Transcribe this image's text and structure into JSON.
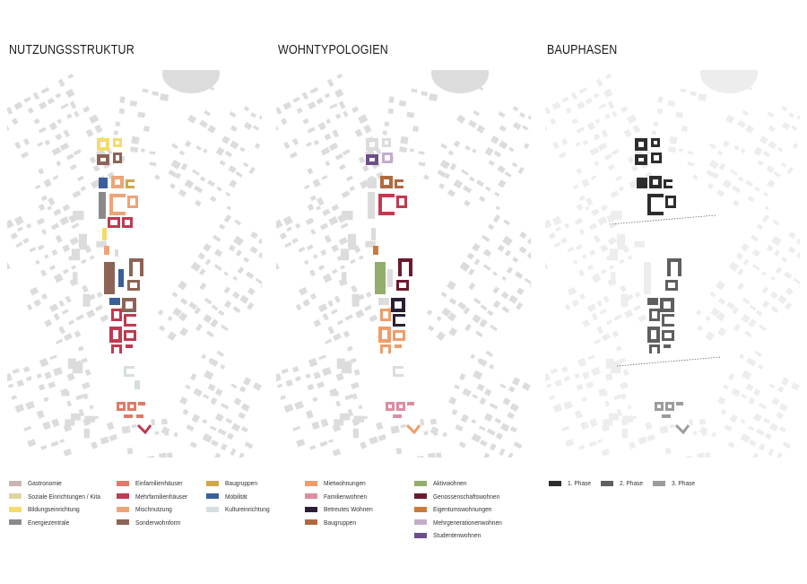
{
  "panels": [
    {
      "title": "NUTZUNGSSTRUKTUR"
    },
    {
      "title": "WOHNTYPOLOGIEN"
    },
    {
      "title": "BAUPHASEN"
    }
  ],
  "colors": {
    "context": "#dcdcdc",
    "context_light": "#ededed",
    "gastronomie": "#c9b5b0",
    "soziale_einrichtungen": "#d9d6a4",
    "bildungseinrichtung": "#f2dc6a",
    "energiezentrale": "#8a8a8a",
    "einfamilienhaeuser": "#e07a6a",
    "mehrfamilienhaeuser": "#c03a50",
    "mischnutzung": "#eda477",
    "sonderwohnform": "#8c6456",
    "baugruppen": "#cfa84a",
    "mobilitaet": "#3a5f9a",
    "kultureinrichtung": "#d5dee0",
    "mietwohnungen": "#ee9d6a",
    "familienwohnen": "#dd8da0",
    "betreutes_wohnen": "#2b1e33",
    "baugruppen_wohn": "#b06a40",
    "aktivwohnen": "#93ad6d",
    "genossenschaftswohnen": "#6b1a2e",
    "eigentumswohnungen": "#cc7a3a",
    "mehrgenerationenwohnen": "#c2aec9",
    "studentenwohnen": "#6e4e8a",
    "phase1": "#2d2d2d",
    "phase2": "#5f5f5f",
    "phase3": "#9c9c9c"
  },
  "legends": [
    {
      "columns": [
        [
          {
            "label": "Gastronomie",
            "color": "#c9b5b0"
          },
          {
            "label": "Soziale Einrichtungen / Kita",
            "color": "#d9d6a4"
          },
          {
            "label": "Bildungseinrichtung",
            "color": "#f2dc6a"
          },
          {
            "label": "Energiezentrale",
            "color": "#8a8a8a"
          }
        ],
        [
          {
            "label": "Einfamilienhäuser",
            "color": "#e07a6a"
          },
          {
            "label": "Mehrfamilienhäuser",
            "color": "#c03a50"
          },
          {
            "label": "Mischnutzung",
            "color": "#eda477"
          },
          {
            "label": "Sonderwohnform",
            "color": "#8c6456"
          }
        ],
        [
          {
            "label": "Baugruppen",
            "color": "#cfa84a"
          },
          {
            "label": "Mobilität",
            "color": "#3a5f9a"
          },
          {
            "label": "Kultureinrichtung",
            "color": "#d5dee0"
          }
        ]
      ]
    },
    {
      "columns": [
        [
          {
            "label": "Mietwohnungen",
            "color": "#ee9d6a"
          },
          {
            "label": "Familienwohnen",
            "color": "#dd8da0"
          },
          {
            "label": "Betreutes Wohnen",
            "color": "#2b1e33"
          },
          {
            "label": "Baugruppen",
            "color": "#b06a40"
          }
        ],
        [
          {
            "label": "Aktivwohnen",
            "color": "#93ad6d"
          },
          {
            "label": "Genossenschaftswohnen",
            "color": "#6b1a2e"
          },
          {
            "label": "Eigentumswohnungen",
            "color": "#cc7a3a"
          },
          {
            "label": "Mehrgenerationenwohnen",
            "color": "#c2aec9"
          },
          {
            "label": "Studentenwohnen",
            "color": "#6e4e8a"
          }
        ]
      ]
    },
    {
      "columns": [
        [
          {
            "label": "1. Phase",
            "color": "#2d2d2d"
          }
        ],
        [
          {
            "label": "2. Phase",
            "color": "#5f5f5f"
          }
        ],
        [
          {
            "label": "3. Phase",
            "color": "#9c9c9c"
          }
        ]
      ]
    }
  ]
}
